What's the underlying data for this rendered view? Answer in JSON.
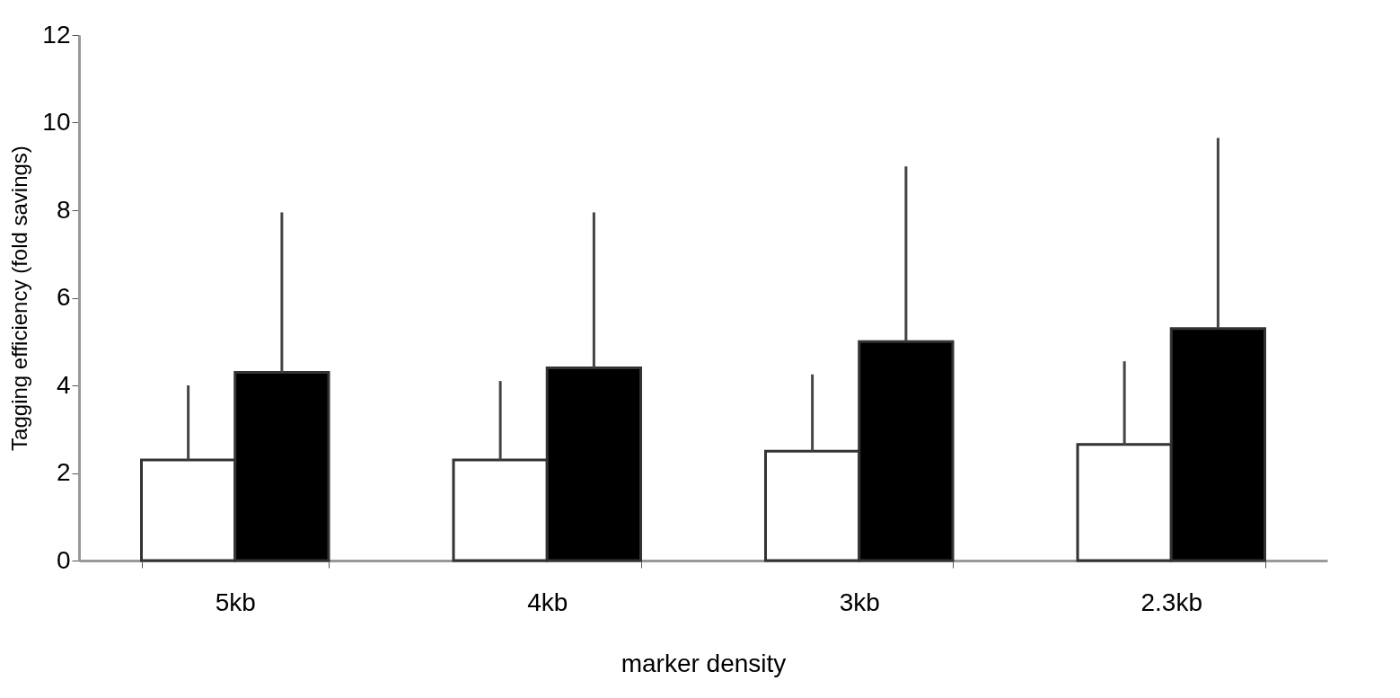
{
  "chart_data": {
    "type": "bar",
    "xlabel": "marker density",
    "ylabel": "Tagging efficiency (fold savings)",
    "categories": [
      "5kb",
      "4kb",
      "3kb",
      "2.3kb"
    ],
    "series": [
      {
        "color": "#ffffff",
        "values": [
          2.3,
          2.3,
          2.5,
          2.65
        ],
        "errors": [
          [
            2.3,
            4.0
          ],
          [
            2.3,
            4.1
          ],
          [
            2.5,
            4.25
          ],
          [
            2.65,
            4.55
          ]
        ]
      },
      {
        "color": "#000000",
        "values": [
          4.3,
          4.4,
          5.0,
          5.3
        ],
        "errors": [
          [
            4.3,
            7.95
          ],
          [
            4.4,
            7.95
          ],
          [
            5.0,
            9.0
          ],
          [
            5.3,
            9.65
          ]
        ]
      }
    ],
    "ylim": [
      0,
      12
    ],
    "yticks": [
      0,
      2,
      4,
      6,
      8,
      10,
      12
    ]
  }
}
